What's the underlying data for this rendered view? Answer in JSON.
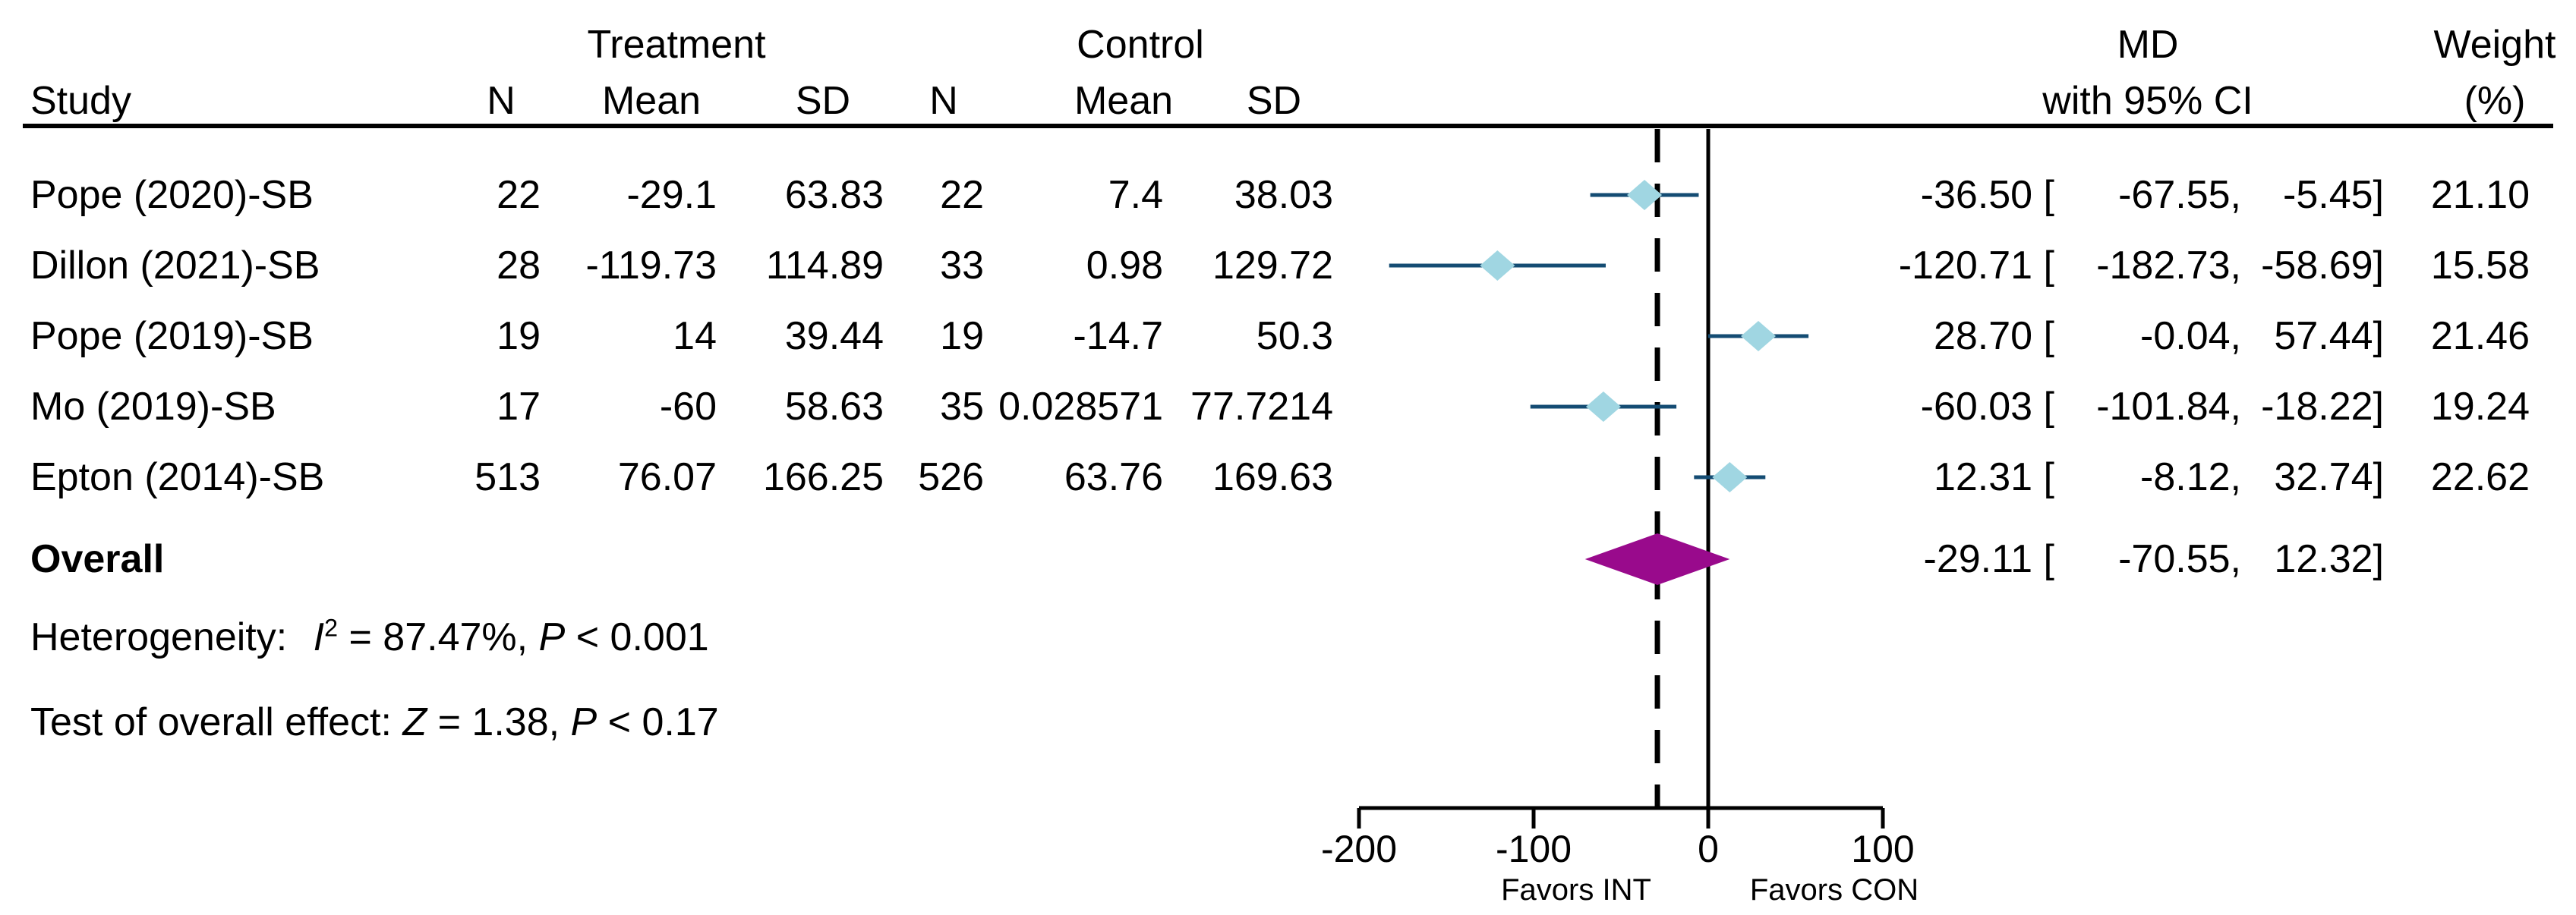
{
  "table": {
    "group_treatment": "Treatment",
    "group_control": "Control",
    "col_study": "Study",
    "col_n_t": "N",
    "col_mean_t": "Mean",
    "col_sd_t": "SD",
    "col_n_c": "N",
    "col_mean_c": "Mean",
    "col_sd_c": "SD",
    "col_md_line1": "MD",
    "col_md_line2": "with 95% CI",
    "col_weight_line1": "Weight",
    "col_weight_line2": "(%)"
  },
  "studies": [
    {
      "name": "Pope (2020)-SB",
      "n_t": "22",
      "mean_t": "-29.1",
      "sd_t": "63.83",
      "n_c": "22",
      "mean_c": "7.4",
      "sd_c": "38.03",
      "md_label": "-36.50 [",
      "lo_label": "-67.55,",
      "hi_label": "-5.45]",
      "weight": "21.10"
    },
    {
      "name": "Dillon (2021)-SB",
      "n_t": "28",
      "mean_t": "-119.73",
      "sd_t": "114.89",
      "n_c": "33",
      "mean_c": "0.98",
      "sd_c": "129.72",
      "md_label": "-120.71 [",
      "lo_label": "-182.73,",
      "hi_label": "-58.69]",
      "weight": "15.58"
    },
    {
      "name": "Pope (2019)-SB",
      "n_t": "19",
      "mean_t": "14",
      "sd_t": "39.44",
      "n_c": "19",
      "mean_c": "-14.7",
      "sd_c": "50.3",
      "md_label": "28.70 [",
      "lo_label": "-0.04,",
      "hi_label": "57.44]",
      "weight": "21.46"
    },
    {
      "name": "Mo (2019)-SB",
      "n_t": "17",
      "mean_t": "-60",
      "sd_t": "58.63",
      "n_c": "35",
      "mean_c": "0.028571",
      "sd_c": "77.7214",
      "md_label": "-60.03 [",
      "lo_label": "-101.84,",
      "hi_label": "-18.22]",
      "weight": "19.24"
    },
    {
      "name": "Epton (2014)-SB",
      "n_t": "513",
      "mean_t": "76.07",
      "sd_t": "166.25",
      "n_c": "526",
      "mean_c": "63.76",
      "sd_c": "169.63",
      "md_label": "12.31 [",
      "lo_label": "-8.12,",
      "hi_label": "32.74]",
      "weight": "22.62"
    }
  ],
  "overall_row": {
    "label": "Overall",
    "md_label": "-29.11 [",
    "lo_label": "-70.55,",
    "hi_label": "12.32]"
  },
  "heterogeneity": {
    "label": "Heterogeneity:",
    "i_symbol": "I",
    "i_sup": "2",
    "i_rest": " = 87.47%, ",
    "p_symbol": "P",
    "p_rest": " < 0.001"
  },
  "overall_test": {
    "label": "Test of overall effect: ",
    "z_symbol": "Z",
    "z_rest": " = 1.38, ",
    "p_symbol": "P",
    "p_rest": " < 0.17"
  },
  "axis": {
    "tick_labels": [
      "-200",
      "-100",
      "0",
      "100"
    ],
    "favors_left": "Favors INT",
    "favors_right": "Favors CON"
  },
  "chart_data": {
    "type": "forest",
    "title": "",
    "xlabel": "MD",
    "xticks": [
      -200,
      -100,
      0,
      100
    ],
    "xlim": [
      -230,
      120
    ],
    "reference_lines": [
      {
        "x": 0,
        "style": "solid"
      },
      {
        "x": -29.11,
        "style": "dashed"
      }
    ],
    "favors": {
      "left": "Favors INT",
      "right": "Favors CON"
    },
    "studies": [
      {
        "name": "Pope (2020)-SB",
        "md": -36.5,
        "ci": [
          -67.55,
          -5.45
        ],
        "weight": 21.1
      },
      {
        "name": "Dillon (2021)-SB",
        "md": -120.71,
        "ci": [
          -182.73,
          -58.69
        ],
        "weight": 15.58
      },
      {
        "name": "Pope (2019)-SB",
        "md": 28.7,
        "ci": [
          -0.04,
          57.44
        ],
        "weight": 21.46
      },
      {
        "name": "Mo (2019)-SB",
        "md": -60.03,
        "ci": [
          -101.84,
          -18.22
        ],
        "weight": 19.24
      },
      {
        "name": "Epton (2014)-SB",
        "md": 12.31,
        "ci": [
          -8.12,
          32.74
        ],
        "weight": 22.62
      }
    ],
    "overall": {
      "md": -29.11,
      "ci": [
        -70.55,
        12.32
      ]
    },
    "heterogeneity": {
      "I2_percent": 87.47,
      "P": "< 0.001"
    },
    "test_of_overall_effect": {
      "Z": 1.38,
      "P": "< 0.17"
    },
    "colors": {
      "ci_line": "#144c73",
      "study_marker": "#a0d6e2",
      "overall_diamond": "#990a8c",
      "reference_line": "#000000",
      "text": "#000000"
    },
    "legend": "none",
    "grid": false
  }
}
